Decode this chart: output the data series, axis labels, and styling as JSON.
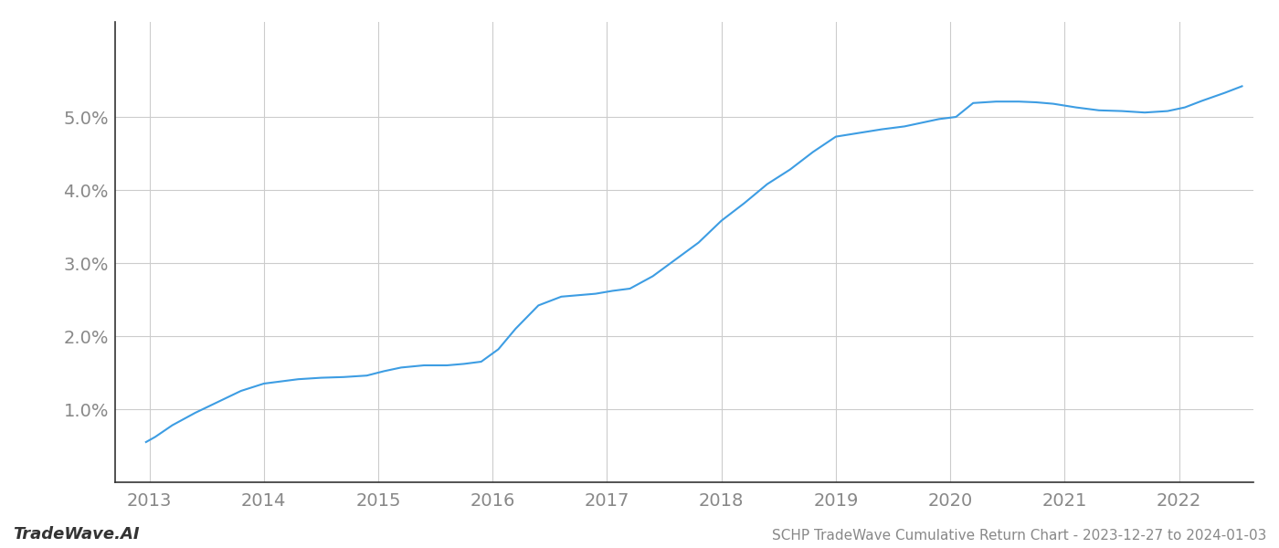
{
  "x_years": [
    2012.97,
    2013.05,
    2013.2,
    2013.4,
    2013.6,
    2013.8,
    2014.0,
    2014.15,
    2014.3,
    2014.5,
    2014.7,
    2014.9,
    2015.05,
    2015.2,
    2015.4,
    2015.6,
    2015.75,
    2015.9,
    2016.05,
    2016.2,
    2016.4,
    2016.6,
    2016.75,
    2016.9,
    2017.05,
    2017.2,
    2017.4,
    2017.6,
    2017.8,
    2018.0,
    2018.2,
    2018.4,
    2018.6,
    2018.8,
    2019.0,
    2019.2,
    2019.4,
    2019.6,
    2019.75,
    2019.9,
    2020.05,
    2020.2,
    2020.4,
    2020.6,
    2020.75,
    2020.9,
    2021.1,
    2021.3,
    2021.5,
    2021.7,
    2021.9,
    2022.05,
    2022.2,
    2022.4,
    2022.55
  ],
  "y_values": [
    0.55,
    0.62,
    0.78,
    0.95,
    1.1,
    1.25,
    1.35,
    1.38,
    1.41,
    1.43,
    1.44,
    1.46,
    1.52,
    1.57,
    1.6,
    1.6,
    1.62,
    1.65,
    1.82,
    2.1,
    2.42,
    2.54,
    2.56,
    2.58,
    2.62,
    2.65,
    2.82,
    3.05,
    3.28,
    3.58,
    3.82,
    4.08,
    4.28,
    4.52,
    4.73,
    4.78,
    4.83,
    4.87,
    4.92,
    4.97,
    5.0,
    5.19,
    5.21,
    5.21,
    5.2,
    5.18,
    5.13,
    5.09,
    5.08,
    5.06,
    5.08,
    5.13,
    5.22,
    5.33,
    5.42
  ],
  "line_color": "#3d9de3",
  "background_color": "#ffffff",
  "grid_color": "#cccccc",
  "title": "SCHP TradeWave Cumulative Return Chart - 2023-12-27 to 2024-01-03",
  "footer_left": "TradeWave.AI",
  "xlim": [
    2012.7,
    2022.65
  ],
  "ylim": [
    0.0,
    6.3
  ],
  "yticks": [
    1.0,
    2.0,
    3.0,
    4.0,
    5.0
  ],
  "ytick_labels": [
    "1.0%",
    "2.0%",
    "3.0%",
    "4.0%",
    "5.0%"
  ],
  "xticks": [
    2013,
    2014,
    2015,
    2016,
    2017,
    2018,
    2019,
    2020,
    2021,
    2022
  ],
  "title_fontsize": 11,
  "tick_fontsize": 14,
  "footer_fontsize": 13,
  "axis_color": "#333333",
  "tick_color": "#888888",
  "spine_color": "#333333"
}
